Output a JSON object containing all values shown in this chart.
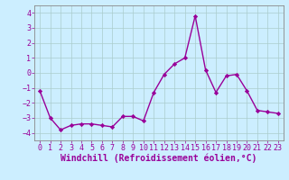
{
  "x": [
    0,
    1,
    2,
    3,
    4,
    5,
    6,
    7,
    8,
    9,
    10,
    11,
    12,
    13,
    14,
    15,
    16,
    17,
    18,
    19,
    20,
    21,
    22,
    23
  ],
  "y": [
    -1.2,
    -3.0,
    -3.8,
    -3.5,
    -3.4,
    -3.4,
    -3.5,
    -3.6,
    -2.9,
    -2.9,
    -3.2,
    -1.3,
    -0.1,
    0.6,
    1.0,
    3.8,
    0.2,
    -1.3,
    -0.2,
    -0.1,
    -1.2,
    -2.5,
    -2.6,
    -2.7
  ],
  "line_color": "#990099",
  "marker": "D",
  "marker_size": 2.2,
  "bg_color": "#cceeff",
  "grid_color": "#aacccc",
  "xlabel": "Windchill (Refroidissement éolien,°C)",
  "ylabel": "",
  "title": "",
  "xlim": [
    -0.5,
    23.5
  ],
  "ylim": [
    -4.5,
    4.5
  ],
  "yticks": [
    -4,
    -3,
    -2,
    -1,
    0,
    1,
    2,
    3,
    4
  ],
  "xticks": [
    0,
    1,
    2,
    3,
    4,
    5,
    6,
    7,
    8,
    9,
    10,
    11,
    12,
    13,
    14,
    15,
    16,
    17,
    18,
    19,
    20,
    21,
    22,
    23
  ],
  "tick_color": "#990099",
  "label_color": "#990099",
  "axis_color": "#888888",
  "tick_fontsize": 6.0,
  "xlabel_fontsize": 7.0,
  "linewidth": 1.0
}
